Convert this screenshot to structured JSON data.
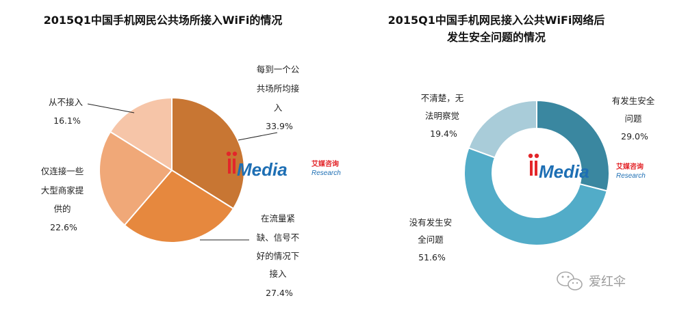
{
  "chart_data": [
    {
      "type": "pie",
      "title": "2015Q1中国手机网民公共场所接入WiFi的情况",
      "categories": [
        "每到一个公共场所均接入",
        "在流量紧缺、信号不好的情况下接入",
        "仅连接一些大型商家提供的",
        "从不接入"
      ],
      "values": [
        33.9,
        27.4,
        22.6,
        16.1
      ],
      "unit": "%",
      "colors": [
        "#c87633",
        "#e6883e",
        "#f0a878",
        "#f6c5a8"
      ],
      "labels": [
        {
          "lines": [
            "每到一个公",
            "共场所均接",
            "入"
          ],
          "pct": "33.9%"
        },
        {
          "lines": [
            "在流量紧",
            "缺、信号不",
            "好的情况下",
            "接入"
          ],
          "pct": "27.4%"
        },
        {
          "lines": [
            "仅连接一些",
            "大型商家提",
            "供的"
          ],
          "pct": "22.6%"
        },
        {
          "lines": [
            "从不接入"
          ],
          "pct": "16.1%"
        }
      ]
    },
    {
      "type": "pie",
      "title": "2015Q1中国手机网民接入公共WiFi网络后发生安全问题的情况",
      "title_lines": [
        "2015Q1中国手机网民接入公共WiFi网络后",
        "发生安全问题的情况"
      ],
      "categories": [
        "有发生安全问题",
        "没有发生安全问题",
        "不清楚，无法明察觉"
      ],
      "values": [
        29.0,
        51.6,
        19.4
      ],
      "unit": "%",
      "donut": true,
      "colors": [
        "#3a87a0",
        "#52acc8",
        "#a9ccd9"
      ],
      "labels": [
        {
          "lines": [
            "有发生安全",
            "问题"
          ],
          "pct": "29.0%"
        },
        {
          "lines": [
            "没有发生安",
            "全问题"
          ],
          "pct": "51.6%"
        },
        {
          "lines": [
            "不清楚，无",
            "法明察觉"
          ],
          "pct": "19.4%"
        }
      ]
    }
  ],
  "watermark": {
    "brand": "iiMedia",
    "brand_cn": "艾媒咨询",
    "brand_en": "Research"
  },
  "wechat": {
    "account": "爱红伞",
    "icon": "wechat-icon"
  }
}
